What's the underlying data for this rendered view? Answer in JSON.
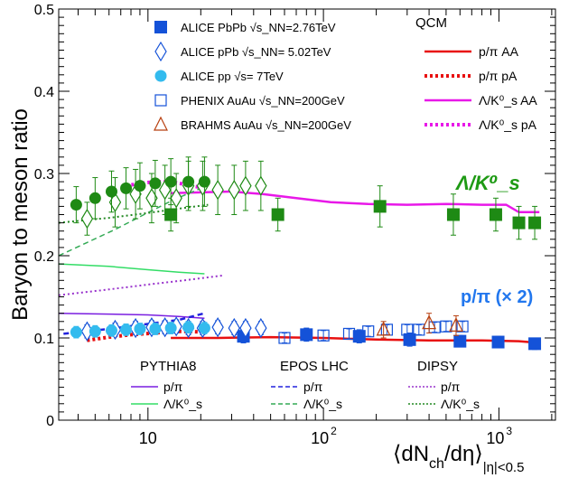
{
  "chart_data": {
    "type": "scatter",
    "ylabel": "Baryon to meson ratio",
    "xlabel": "⟨dN_ch/dη⟩_{|η|<0.5}",
    "xscale": "log",
    "xlim": [
      3.1,
      2100
    ],
    "ylim": [
      0,
      0.5
    ],
    "grid": false,
    "legend_position": "top",
    "yticks": [
      "0",
      "0.1",
      "0.2",
      "0.3",
      "0.4",
      "0.5"
    ],
    "xticks": [
      {
        "value": 10,
        "label": "10"
      },
      {
        "value": 100,
        "label": "10²"
      },
      {
        "value": 1000,
        "label": "10³"
      }
    ],
    "legend_data": [
      "ALICE PbPb √s_NN=2.76TeV",
      "ALICE pPb √s_NN= 5.02TeV",
      "ALICE pp √s= 7TeV",
      "PHENIX AuAu √s_NN=200GeV",
      "BRAHMS AuAu √s_NN=200GeV"
    ],
    "legend_qcm_title": "QCM",
    "legend_qcm": [
      "p/π AA",
      "p/π pA",
      "Λ/K⁰_s AA",
      "Λ/K⁰_s pA"
    ],
    "legend_models": [
      {
        "title": "PYTHIA8",
        "entries": [
          "p/π",
          "Λ/K⁰_s"
        ]
      },
      {
        "title": "EPOS LHC",
        "entries": [
          "p/π",
          "Λ/K⁰_s"
        ]
      },
      {
        "title": "DIPSY",
        "entries": [
          "p/π",
          "Λ/K⁰_s"
        ]
      }
    ],
    "annotations": {
      "lambda_k0": "Λ/K⁰_s",
      "p_pi": "p/π (× 2)"
    },
    "colors": {
      "pbpb": "#1452d8",
      "ppb": "#1452d8",
      "pp": "#33bbee",
      "phenix": "#1452d8",
      "brahms": "#b84010",
      "lk0_data": "#1e8a14",
      "lk0_label": "#1e9a14",
      "ppi_label": "#2277ee",
      "qcm_ppi": "#e81010",
      "qcm_lk0": "#e818e8",
      "pythia": "#7a1ee0",
      "pythia_lk0": "#33dd66",
      "epos": "#2222dd",
      "epos_lk0": "#33aa55",
      "dipsy": "#9933cc",
      "dipsy_lk0": "#228822"
    },
    "series": [
      {
        "name": "ALICE PbPb √s_NN=2.76TeV",
        "marker": "square-filled",
        "quantity": "p/π",
        "x": [
          35,
          80,
          160,
          310,
          600,
          990,
          1600
        ],
        "y": [
          0.102,
          0.104,
          0.102,
          0.098,
          0.096,
          0.095,
          0.093
        ],
        "err": [
          0.008,
          0.008,
          0.008,
          0.008,
          0.007,
          0.007,
          0.007
        ]
      },
      {
        "name": "ALICE PbPb √s_NN=2.76TeV",
        "marker": "square-filled",
        "quantity": "Λ/K⁰_s",
        "x": [
          13.5,
          55,
          210,
          550,
          960,
          1300,
          1600
        ],
        "y": [
          0.25,
          0.25,
          0.26,
          0.25,
          0.25,
          0.24,
          0.24
        ],
        "err": [
          0.02,
          0.02,
          0.025,
          0.025,
          0.02,
          0.02,
          0.02
        ]
      },
      {
        "name": "ALICE pPb √s_NN= 5.02TeV",
        "marker": "diamond-open",
        "quantity": "p/π",
        "x": [
          4.5,
          6.5,
          8.5,
          10.5,
          12.5,
          14.5,
          17,
          20.5,
          25,
          31,
          36,
          44
        ],
        "y": [
          0.108,
          0.11,
          0.112,
          0.113,
          0.113,
          0.114,
          0.112,
          0.112,
          0.113,
          0.112,
          0.112,
          0.112
        ],
        "err": [
          0.008,
          0.008,
          0.008,
          0.008,
          0.008,
          0.008,
          0.008,
          0.008,
          0.008,
          0.008,
          0.008,
          0.008
        ]
      },
      {
        "name": "ALICE pPb √s_NN= 5.02TeV",
        "marker": "diamond-open",
        "quantity": "Λ/K⁰_s",
        "x": [
          4.5,
          6.5,
          8.5,
          10.5,
          12.5,
          14.5,
          17,
          20.5,
          25,
          31,
          36,
          44
        ],
        "y": [
          0.245,
          0.265,
          0.275,
          0.27,
          0.28,
          0.27,
          0.285,
          0.285,
          0.28,
          0.28,
          0.285,
          0.285
        ],
        "err": [
          0.02,
          0.03,
          0.03,
          0.03,
          0.03,
          0.03,
          0.03,
          0.03,
          0.03,
          0.03,
          0.03,
          0.03
        ]
      },
      {
        "name": "ALICE pp √s= 7TeV",
        "marker": "circle-filled",
        "quantity": "p/π",
        "x": [
          3.9,
          5.0,
          6.2,
          7.5,
          9.0,
          11.0,
          13.5,
          17,
          21
        ],
        "y": [
          0.107,
          0.108,
          0.109,
          0.11,
          0.111,
          0.111,
          0.112,
          0.113,
          0.112
        ],
        "err": [
          0.007,
          0.007,
          0.007,
          0.007,
          0.007,
          0.007,
          0.007,
          0.007,
          0.007
        ]
      },
      {
        "name": "ALICE pp √s= 7TeV",
        "marker": "circle-filled-green",
        "quantity": "Λ/K⁰_s",
        "x": [
          3.9,
          5.0,
          6.2,
          7.5,
          9.0,
          11.0,
          13.5,
          17,
          21
        ],
        "y": [
          0.262,
          0.27,
          0.278,
          0.282,
          0.285,
          0.288,
          0.29,
          0.29,
          0.29
        ],
        "err": [
          0.022,
          0.025,
          0.025,
          0.025,
          0.028,
          0.028,
          0.028,
          0.03,
          0.03
        ]
      },
      {
        "name": "PHENIX AuAu √s_NN=200GeV",
        "marker": "square-open",
        "quantity": "p/π",
        "x": [
          60,
          100,
          140,
          180,
          230,
          300,
          350,
          430,
          500,
          620
        ],
        "y": [
          0.1,
          0.103,
          0.105,
          0.108,
          0.11,
          0.11,
          0.11,
          0.113,
          0.114,
          0.114
        ],
        "err": [
          0.006,
          0.006,
          0.006,
          0.006,
          0.006,
          0.006,
          0.006,
          0.006,
          0.006,
          0.006
        ]
      },
      {
        "name": "BRAHMS AuAu √s_NN=200GeV",
        "marker": "triangle-open",
        "quantity": "p/π",
        "x": [
          220,
          400,
          570
        ],
        "y": [
          0.11,
          0.118,
          0.115
        ],
        "err": [
          0.01,
          0.012,
          0.012
        ]
      }
    ],
    "curves": [
      {
        "name": "QCM p/π AA",
        "style": "solid",
        "color_key": "qcm_ppi",
        "width": 2.5,
        "x": [
          13.5,
          25,
          50,
          100,
          200,
          400,
          800,
          1300,
          1700
        ],
        "y": [
          0.1,
          0.1,
          0.101,
          0.1,
          0.098,
          0.097,
          0.097,
          0.096,
          0.094
        ]
      },
      {
        "name": "QCM p/π pA",
        "style": "dotted-thick",
        "color_key": "qcm_ppi",
        "width": 4,
        "x": [
          4.5,
          6,
          8,
          11,
          14,
          17,
          21
        ],
        "y": [
          0.097,
          0.101,
          0.104,
          0.106,
          0.108,
          0.108,
          0.107
        ]
      },
      {
        "name": "QCM Λ/K⁰_s AA",
        "style": "solid",
        "color_key": "qcm_lk0",
        "width": 2.5,
        "x": [
          13.5,
          20,
          30,
          45,
          70,
          110,
          180,
          300,
          500,
          800,
          1100,
          1300,
          1700
        ],
        "y": [
          0.276,
          0.277,
          0.278,
          0.275,
          0.27,
          0.265,
          0.263,
          0.262,
          0.263,
          0.262,
          0.262,
          0.253,
          0.253
        ]
      },
      {
        "name": "QCM Λ/K⁰_s pA",
        "style": "dotted-thick",
        "color_key": "qcm_lk0",
        "width": 4,
        "x": [
          7.5,
          9,
          11,
          13.5,
          16,
          20
        ],
        "y": [
          0.285,
          0.288,
          0.29,
          0.29,
          0.287,
          0.283
        ]
      },
      {
        "name": "PYTHIA8 p/π",
        "style": "solid",
        "color_key": "pythia",
        "width": 1.5,
        "x": [
          3.1,
          6,
          10,
          15,
          21
        ],
        "y": [
          0.13,
          0.129,
          0.128,
          0.126,
          0.124
        ]
      },
      {
        "name": "PYTHIA8 Λ/K⁰_s",
        "style": "solid",
        "color_key": "pythia_lk0",
        "width": 1.5,
        "x": [
          3.1,
          6,
          10,
          15,
          21
        ],
        "y": [
          0.19,
          0.187,
          0.183,
          0.18,
          0.178
        ]
      },
      {
        "name": "EPOS LHC p/π",
        "style": "dashed",
        "color_key": "epos",
        "width": 2.5,
        "x": [
          3.3,
          6,
          10,
          15,
          21
        ],
        "y": [
          0.105,
          0.111,
          0.117,
          0.122,
          0.13
        ]
      },
      {
        "name": "EPOS LHC Λ/K⁰_s",
        "style": "dashed",
        "color_key": "epos_lk0",
        "width": 1.5,
        "x": [
          3.1,
          4.5,
          6.5,
          9.5,
          14,
          20
        ],
        "y": [
          0.2,
          0.216,
          0.232,
          0.25,
          0.268,
          0.282
        ]
      },
      {
        "name": "DIPSY p/π",
        "style": "dotted",
        "color_key": "dipsy",
        "width": 2,
        "x": [
          3.1,
          6,
          10,
          16,
          27
        ],
        "y": [
          0.152,
          0.159,
          0.165,
          0.17,
          0.176
        ]
      },
      {
        "name": "DIPSY Λ/K⁰_s",
        "style": "dotted",
        "color_key": "dipsy_lk0",
        "width": 2,
        "x": [
          3.1,
          6,
          10,
          16,
          22
        ],
        "y": [
          0.24,
          0.246,
          0.252,
          0.258,
          0.262
        ]
      }
    ]
  }
}
